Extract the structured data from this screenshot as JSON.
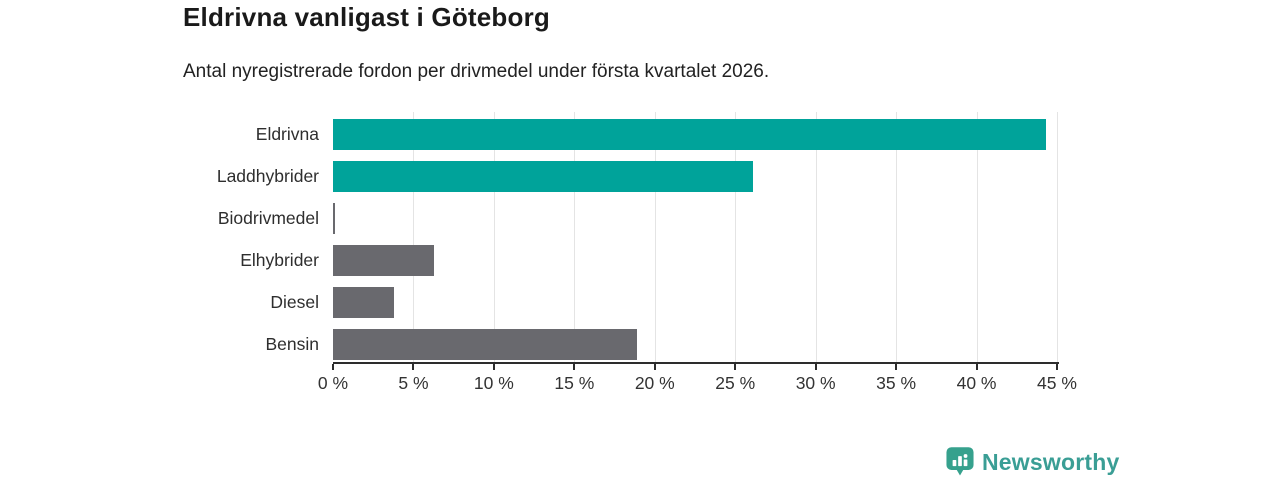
{
  "header": {
    "title": "Eldrivna vanligast i Göteborg",
    "subtitle": "Antal nyregistrerade fordon per drivmedel under första kvartalet 2026."
  },
  "chart_data": {
    "type": "bar",
    "orientation": "horizontal",
    "title": "Eldrivna vanligast i Göteborg",
    "subtitle": "Antal nyregistrerade fordon per drivmedel under första kvartalet 2026.",
    "categories": [
      "Eldrivna",
      "Laddhybrider",
      "Biodrivmedel",
      "Elhybrider",
      "Diesel",
      "Bensin"
    ],
    "values": [
      44.3,
      26.1,
      0.1,
      6.3,
      3.8,
      18.9
    ],
    "unit": "%",
    "xlim": [
      0,
      45
    ],
    "xtick_values": [
      0,
      5,
      10,
      15,
      20,
      25,
      30,
      35,
      40,
      45
    ],
    "xtick_labels": [
      "0 %",
      "5 %",
      "10 %",
      "15 %",
      "20 %",
      "25 %",
      "30 %",
      "35 %",
      "40 %",
      "45 %"
    ],
    "grid": "vertical",
    "legend": "none",
    "highlight_color": "#00a39a",
    "base_color": "#69696e",
    "bar_colors": [
      "#00a39a",
      "#00a39a",
      "#69696e",
      "#69696e",
      "#69696e",
      "#69696e"
    ]
  },
  "branding": {
    "logo_text": "Newsworthy",
    "logo_icon": "bar-chart-pin-icon",
    "logo_color": "#3a9e95",
    "icon_color": "#36a18d"
  }
}
